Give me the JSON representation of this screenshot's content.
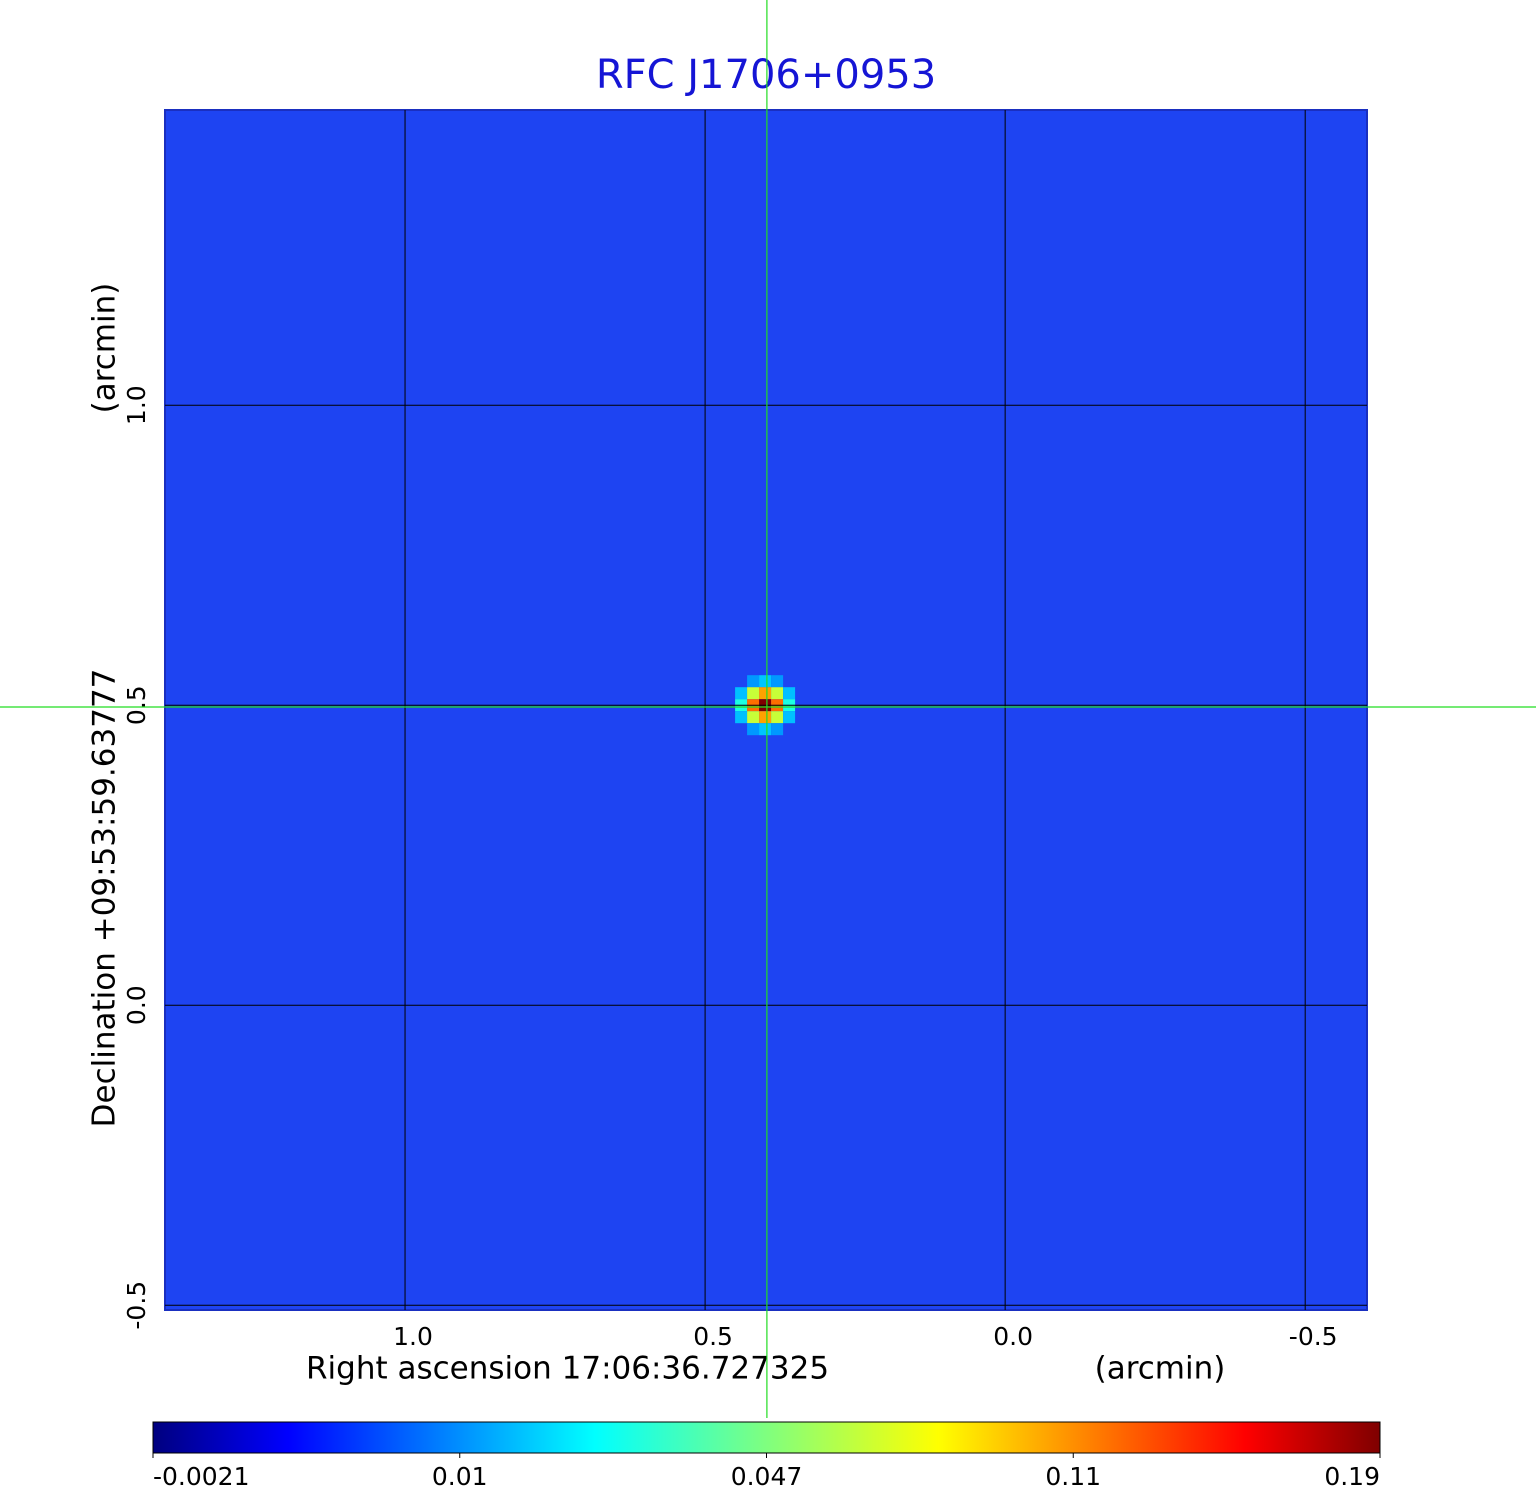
{
  "chart_data": {
    "type": "image",
    "title": "RFC J1706+0953",
    "x_label": "Right ascension  17:06:36.727325",
    "x_unit": "(arcmin)",
    "y_label": "Declination  +09:53:59.63777",
    "y_unit": "(arcmin)",
    "xlim": [
      1.4,
      -0.603
    ],
    "ylim": [
      -0.508,
      1.492
    ],
    "xticks": [
      {
        "value": 1,
        "label": "1.0"
      },
      0.5,
      {
        "value": 0,
        "label": "0.0"
      },
      -0.5
    ],
    "yticks": [
      -0.5,
      {
        "value": 0,
        "label": "0.0"
      },
      0.5,
      {
        "value": 1,
        "label": "1.0"
      }
    ],
    "grid": true,
    "colormap": "jet",
    "background": "#1e44f2",
    "source": {
      "x": 0.4,
      "y": 0.5,
      "peak": 0.19
    },
    "crosshair": {
      "x": 0.397,
      "y": 0.497,
      "color": "#22dd22"
    },
    "colorbar_ticks": [
      -0.0021,
      0.01,
      0.047,
      0.11,
      0.19
    ]
  }
}
